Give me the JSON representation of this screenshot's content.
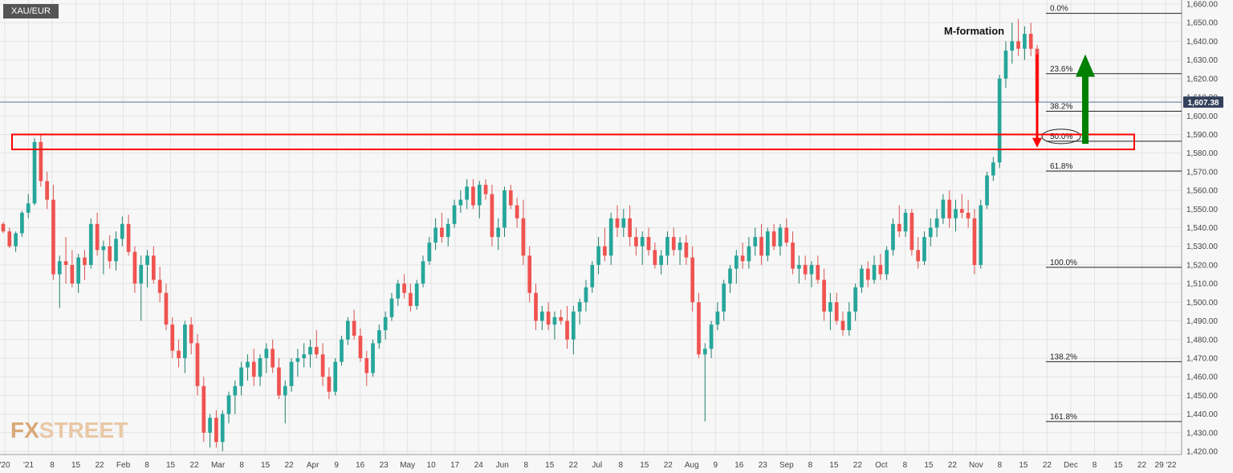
{
  "symbol": "XAU/EUR",
  "watermark": {
    "part1": "FX",
    "part2": "STREET"
  },
  "annotation": "M-formation",
  "last_price_label": "1,607.38",
  "colors": {
    "up": "#26a69a",
    "down": "#ef5350",
    "up_dark": "#1e7d6c",
    "down_dark": "#d9534f",
    "box": "#ff0000",
    "arrow_down": "#ff0000",
    "arrow_up": "#008000",
    "price_line": "#5b6e98",
    "grid": "#e3e3e3"
  },
  "chart_data": {
    "type": "candlestick",
    "y_axis_labels": [
      "1,420.00",
      "1,430.00",
      "1,440.00",
      "1,450.00",
      "1,460.00",
      "1,470.00",
      "1,480.00",
      "1,490.00",
      "1,500.00",
      "1,510.00",
      "1,520.00",
      "1,530.00",
      "1,540.00",
      "1,550.00",
      "1,560.00",
      "1,570.00",
      "1,580.00",
      "1,590.00",
      "1,600.00",
      "1,610.00",
      "1,620.00",
      "1,630.00",
      "1,640.00",
      "1,650.00",
      "1,660.00"
    ],
    "ylim": [
      1420,
      1660
    ],
    "x_axis_labels": [
      "'20",
      "'21",
      "8",
      "15",
      "22",
      "Feb",
      "8",
      "15",
      "22",
      "Mar",
      "8",
      "15",
      "22",
      "Apr",
      "9",
      "16",
      "23",
      "May",
      "10",
      "17",
      "24",
      "Jun",
      "8",
      "15",
      "22",
      "Jul",
      "8",
      "15",
      "22",
      "Aug",
      "9",
      "16",
      "23",
      "Sep",
      "8",
      "15",
      "22",
      "Oct",
      "8",
      "15",
      "22",
      "Nov",
      "8",
      "15",
      "22",
      "Dec",
      "8",
      "15",
      "22",
      "29 '22"
    ],
    "last_price": 1607.38,
    "fibonacci": [
      {
        "label": "0.0%",
        "value": 1655
      },
      {
        "label": "23.6%",
        "value": 1622.6
      },
      {
        "label": "38.2%",
        "value": 1602.5
      },
      {
        "label": "50.0%",
        "value": 1586.4
      },
      {
        "label": "61.8%",
        "value": 1570.4
      },
      {
        "label": "100.0%",
        "value": 1518.7
      },
      {
        "label": "138.2%",
        "value": 1468.1
      },
      {
        "label": "161.8%",
        "value": 1436
      }
    ],
    "resistance_zone": [
      1582,
      1590
    ],
    "candles": [
      [
        1542,
        1543,
        1537,
        1538
      ],
      [
        1538,
        1540,
        1529,
        1530
      ],
      [
        1530,
        1538,
        1527,
        1537
      ],
      [
        1537,
        1549,
        1535,
        1548
      ],
      [
        1548,
        1558,
        1545,
        1553
      ],
      [
        1553,
        1588,
        1552,
        1586
      ],
      [
        1586,
        1590,
        1562,
        1565
      ],
      [
        1565,
        1570,
        1550,
        1555
      ],
      [
        1555,
        1563,
        1512,
        1515
      ],
      [
        1515,
        1525,
        1497,
        1522
      ],
      [
        1522,
        1535,
        1510,
        1520
      ],
      [
        1520,
        1528,
        1508,
        1510
      ],
      [
        1510,
        1526,
        1505,
        1524
      ],
      [
        1524,
        1528,
        1512,
        1520
      ],
      [
        1520,
        1545,
        1518,
        1542
      ],
      [
        1542,
        1548,
        1525,
        1528
      ],
      [
        1528,
        1533,
        1515,
        1530
      ],
      [
        1530,
        1536,
        1518,
        1522
      ],
      [
        1522,
        1538,
        1517,
        1534
      ],
      [
        1534,
        1546,
        1530,
        1542
      ],
      [
        1542,
        1547,
        1525,
        1527
      ],
      [
        1527,
        1530,
        1505,
        1510
      ],
      [
        1510,
        1525,
        1490,
        1520
      ],
      [
        1520,
        1528,
        1508,
        1525
      ],
      [
        1525,
        1530,
        1510,
        1512
      ],
      [
        1512,
        1519,
        1500,
        1505
      ],
      [
        1505,
        1510,
        1485,
        1488
      ],
      [
        1488,
        1492,
        1470,
        1474
      ],
      [
        1474,
        1480,
        1465,
        1470
      ],
      [
        1470,
        1490,
        1462,
        1488
      ],
      [
        1488,
        1492,
        1472,
        1478
      ],
      [
        1478,
        1483,
        1450,
        1455
      ],
      [
        1455,
        1460,
        1425,
        1430
      ],
      [
        1430,
        1440,
        1422,
        1438
      ],
      [
        1438,
        1442,
        1422,
        1425
      ],
      [
        1425,
        1442,
        1420,
        1440
      ],
      [
        1440,
        1452,
        1435,
        1450
      ],
      [
        1450,
        1458,
        1440,
        1455
      ],
      [
        1455,
        1468,
        1450,
        1465
      ],
      [
        1465,
        1472,
        1458,
        1468
      ],
      [
        1468,
        1475,
        1455,
        1460
      ],
      [
        1460,
        1472,
        1455,
        1470
      ],
      [
        1470,
        1478,
        1462,
        1475
      ],
      [
        1475,
        1480,
        1462,
        1465
      ],
      [
        1465,
        1470,
        1448,
        1450
      ],
      [
        1450,
        1458,
        1435,
        1455
      ],
      [
        1455,
        1470,
        1452,
        1468
      ],
      [
        1468,
        1475,
        1460,
        1470
      ],
      [
        1470,
        1478,
        1465,
        1472
      ],
      [
        1472,
        1480,
        1465,
        1476
      ],
      [
        1476,
        1485,
        1470,
        1472
      ],
      [
        1472,
        1478,
        1455,
        1460
      ],
      [
        1460,
        1465,
        1448,
        1452
      ],
      [
        1452,
        1470,
        1450,
        1468
      ],
      [
        1468,
        1482,
        1466,
        1480
      ],
      [
        1480,
        1492,
        1477,
        1490
      ],
      [
        1490,
        1496,
        1480,
        1482
      ],
      [
        1482,
        1486,
        1468,
        1470
      ],
      [
        1470,
        1474,
        1455,
        1462
      ],
      [
        1462,
        1480,
        1460,
        1478
      ],
      [
        1478,
        1488,
        1475,
        1485
      ],
      [
        1485,
        1495,
        1480,
        1492
      ],
      [
        1492,
        1505,
        1490,
        1502
      ],
      [
        1502,
        1512,
        1498,
        1510
      ],
      [
        1510,
        1515,
        1502,
        1505
      ],
      [
        1505,
        1510,
        1495,
        1498
      ],
      [
        1498,
        1512,
        1496,
        1510
      ],
      [
        1510,
        1525,
        1508,
        1522
      ],
      [
        1522,
        1535,
        1520,
        1532
      ],
      [
        1532,
        1545,
        1528,
        1540
      ],
      [
        1540,
        1548,
        1532,
        1535
      ],
      [
        1535,
        1545,
        1530,
        1542
      ],
      [
        1542,
        1555,
        1540,
        1552
      ],
      [
        1552,
        1560,
        1548,
        1555
      ],
      [
        1555,
        1566,
        1550,
        1562
      ],
      [
        1562,
        1566,
        1550,
        1552
      ],
      [
        1552,
        1565,
        1545,
        1563
      ],
      [
        1563,
        1566,
        1555,
        1558
      ],
      [
        1558,
        1563,
        1530,
        1535
      ],
      [
        1535,
        1545,
        1528,
        1540
      ],
      [
        1540,
        1562,
        1535,
        1560
      ],
      [
        1560,
        1563,
        1550,
        1552
      ],
      [
        1552,
        1556,
        1540,
        1545
      ],
      [
        1545,
        1555,
        1520,
        1525
      ],
      [
        1525,
        1530,
        1500,
        1505
      ],
      [
        1505,
        1510,
        1485,
        1490
      ],
      [
        1490,
        1498,
        1485,
        1495
      ],
      [
        1495,
        1500,
        1485,
        1488
      ],
      [
        1488,
        1495,
        1480,
        1492
      ],
      [
        1492,
        1496,
        1488,
        1490
      ],
      [
        1490,
        1498,
        1475,
        1480
      ],
      [
        1480,
        1498,
        1472,
        1495
      ],
      [
        1495,
        1502,
        1488,
        1500
      ],
      [
        1500,
        1512,
        1495,
        1508
      ],
      [
        1508,
        1522,
        1505,
        1520
      ],
      [
        1520,
        1535,
        1515,
        1530
      ],
      [
        1530,
        1540,
        1522,
        1525
      ],
      [
        1525,
        1548,
        1520,
        1545
      ],
      [
        1545,
        1552,
        1535,
        1540
      ],
      [
        1540,
        1550,
        1535,
        1545
      ],
      [
        1545,
        1552,
        1530,
        1535
      ],
      [
        1535,
        1540,
        1525,
        1530
      ],
      [
        1530,
        1538,
        1520,
        1535
      ],
      [
        1535,
        1540,
        1525,
        1528
      ],
      [
        1528,
        1532,
        1518,
        1520
      ],
      [
        1520,
        1528,
        1515,
        1525
      ],
      [
        1525,
        1538,
        1520,
        1535
      ],
      [
        1535,
        1540,
        1525,
        1528
      ],
      [
        1528,
        1535,
        1520,
        1532
      ],
      [
        1532,
        1536,
        1520,
        1524
      ],
      [
        1524,
        1530,
        1495,
        1500
      ],
      [
        1500,
        1505,
        1470,
        1472
      ],
      [
        1472,
        1478,
        1436,
        1475
      ],
      [
        1475,
        1490,
        1470,
        1488
      ],
      [
        1488,
        1500,
        1485,
        1495
      ],
      [
        1495,
        1512,
        1490,
        1510
      ],
      [
        1510,
        1520,
        1505,
        1518
      ],
      [
        1518,
        1528,
        1510,
        1525
      ],
      [
        1525,
        1532,
        1518,
        1522
      ],
      [
        1522,
        1535,
        1518,
        1530
      ],
      [
        1530,
        1540,
        1525,
        1535
      ],
      [
        1535,
        1542,
        1520,
        1525
      ],
      [
        1525,
        1540,
        1522,
        1538
      ],
      [
        1538,
        1542,
        1528,
        1530
      ],
      [
        1530,
        1542,
        1525,
        1540
      ],
      [
        1540,
        1545,
        1530,
        1532
      ],
      [
        1532,
        1538,
        1515,
        1518
      ],
      [
        1518,
        1525,
        1510,
        1520
      ],
      [
        1520,
        1525,
        1512,
        1515
      ],
      [
        1515,
        1522,
        1508,
        1520
      ],
      [
        1520,
        1525,
        1510,
        1512
      ],
      [
        1512,
        1518,
        1490,
        1495
      ],
      [
        1495,
        1505,
        1485,
        1500
      ],
      [
        1500,
        1505,
        1488,
        1490
      ],
      [
        1490,
        1495,
        1482,
        1485
      ],
      [
        1485,
        1500,
        1482,
        1495
      ],
      [
        1495,
        1510,
        1490,
        1508
      ],
      [
        1508,
        1520,
        1505,
        1518
      ],
      [
        1518,
        1522,
        1508,
        1512
      ],
      [
        1512,
        1525,
        1510,
        1520
      ],
      [
        1520,
        1526,
        1512,
        1515
      ],
      [
        1515,
        1530,
        1512,
        1528
      ],
      [
        1528,
        1545,
        1525,
        1542
      ],
      [
        1542,
        1552,
        1535,
        1538
      ],
      [
        1538,
        1550,
        1535,
        1548
      ],
      [
        1548,
        1550,
        1525,
        1528
      ],
      [
        1528,
        1535,
        1518,
        1522
      ],
      [
        1522,
        1538,
        1520,
        1535
      ],
      [
        1535,
        1545,
        1530,
        1540
      ],
      [
        1540,
        1550,
        1535,
        1545
      ],
      [
        1545,
        1558,
        1542,
        1555
      ],
      [
        1555,
        1560,
        1540,
        1545
      ],
      [
        1545,
        1555,
        1538,
        1550
      ],
      [
        1550,
        1558,
        1545,
        1548
      ],
      [
        1548,
        1555,
        1540,
        1545
      ],
      [
        1545,
        1550,
        1515,
        1520
      ],
      [
        1520,
        1555,
        1518,
        1552
      ],
      [
        1552,
        1570,
        1550,
        1568
      ],
      [
        1568,
        1578,
        1565,
        1575
      ],
      [
        1575,
        1622,
        1572,
        1620
      ],
      [
        1620,
        1640,
        1615,
        1635
      ],
      [
        1635,
        1650,
        1628,
        1640
      ],
      [
        1640,
        1652,
        1632,
        1636
      ],
      [
        1636,
        1648,
        1630,
        1644
      ],
      [
        1644,
        1650,
        1632,
        1636
      ],
      [
        1636,
        1638,
        1605,
        1607
      ]
    ]
  }
}
